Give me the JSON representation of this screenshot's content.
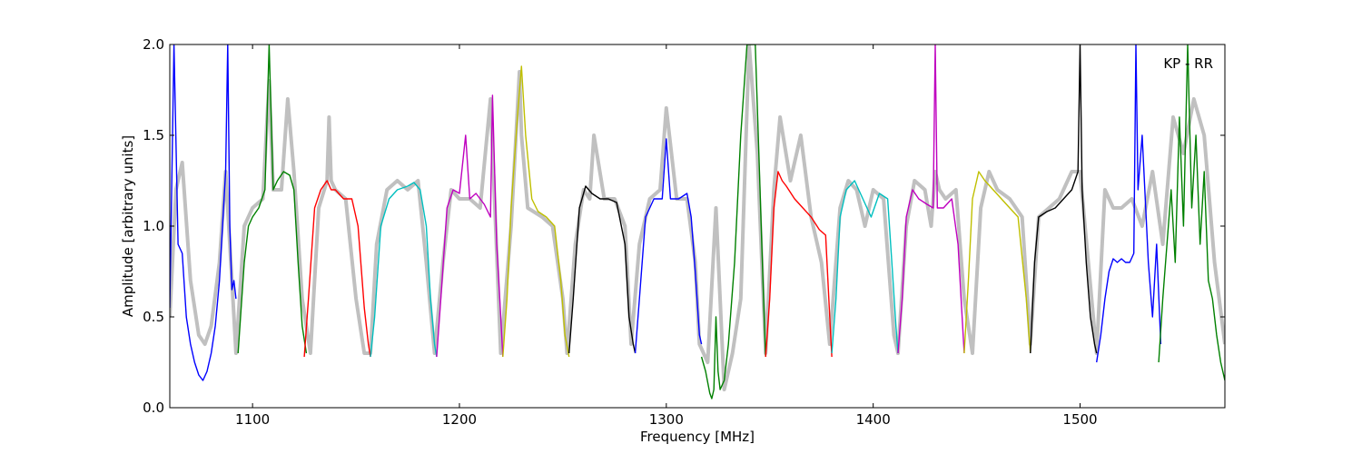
{
  "chart_data": {
    "type": "line",
    "title": "",
    "xlabel": "Frequency [MHz]",
    "ylabel": "Amplitude [arbitrary units]",
    "xlim": [
      1060,
      1570
    ],
    "ylim": [
      0,
      2.0
    ],
    "xticks": [
      1100,
      1200,
      1300,
      1400,
      1500
    ],
    "xtick_labels": [
      "1100",
      "1200",
      "1300",
      "1400",
      "1500"
    ],
    "yticks": [
      0.0,
      0.5,
      1.0,
      1.5,
      2.0
    ],
    "ytick_labels": [
      "0.0",
      "0.5",
      "1.0",
      "1.5",
      "2.0"
    ],
    "annotation": "KP - RR",
    "grid": false,
    "background_color": "#c0c0c0",
    "background_series": {
      "x": [
        1060,
        1063,
        1066,
        1070,
        1074,
        1077,
        1080,
        1084,
        1087,
        1090,
        1092,
        1096,
        1100,
        1105,
        1108,
        1110,
        1114,
        1117,
        1120,
        1124,
        1128,
        1132,
        1136,
        1137,
        1138,
        1140,
        1145,
        1150,
        1154,
        1157,
        1160,
        1165,
        1170,
        1175,
        1180,
        1184,
        1188,
        1192,
        1196,
        1200,
        1205,
        1210,
        1215,
        1220,
        1225,
        1229,
        1230,
        1233,
        1240,
        1245,
        1250,
        1252,
        1256,
        1260,
        1263,
        1265,
        1270,
        1275,
        1280,
        1283,
        1287,
        1292,
        1297,
        1300,
        1305,
        1310,
        1314,
        1316,
        1320,
        1324,
        1328,
        1332,
        1336,
        1340,
        1344,
        1348,
        1352,
        1355,
        1360,
        1365,
        1370,
        1375,
        1379,
        1384,
        1388,
        1392,
        1396,
        1400,
        1405,
        1410,
        1412,
        1416,
        1420,
        1425,
        1428,
        1430,
        1432,
        1435,
        1440,
        1444,
        1448,
        1452,
        1456,
        1460,
        1466,
        1472,
        1476,
        1480,
        1485,
        1490,
        1496,
        1500,
        1504,
        1508,
        1512,
        1516,
        1520,
        1525,
        1530,
        1535,
        1540,
        1545,
        1550,
        1555,
        1560,
        1565,
        1570
      ],
      "y": [
        0.5,
        1.2,
        1.35,
        0.7,
        0.4,
        0.35,
        0.45,
        0.8,
        1.3,
        0.7,
        0.3,
        1.0,
        1.1,
        1.15,
        1.8,
        1.2,
        1.2,
        1.7,
        1.3,
        0.6,
        0.3,
        1.1,
        1.25,
        1.6,
        1.25,
        1.2,
        1.15,
        0.6,
        0.3,
        0.3,
        0.9,
        1.2,
        1.25,
        1.2,
        1.25,
        0.8,
        0.3,
        0.8,
        1.2,
        1.15,
        1.15,
        1.1,
        1.7,
        0.3,
        1.0,
        1.85,
        1.5,
        1.1,
        1.05,
        1.0,
        0.6,
        0.3,
        0.9,
        1.2,
        1.15,
        1.5,
        1.15,
        1.15,
        1.0,
        0.35,
        0.9,
        1.15,
        1.2,
        1.65,
        1.15,
        1.15,
        0.8,
        0.35,
        0.25,
        1.1,
        0.1,
        0.3,
        0.6,
        2.0,
        1.4,
        0.3,
        1.2,
        1.6,
        1.25,
        1.5,
        1.05,
        0.8,
        0.35,
        1.1,
        1.25,
        1.2,
        1.0,
        1.2,
        1.15,
        0.4,
        0.3,
        1.0,
        1.25,
        1.2,
        1.0,
        1.3,
        1.2,
        1.15,
        1.2,
        0.6,
        0.3,
        1.1,
        1.3,
        1.2,
        1.15,
        1.05,
        0.35,
        1.05,
        1.1,
        1.15,
        1.3,
        1.3,
        0.8,
        0.3,
        1.2,
        1.1,
        1.1,
        1.15,
        1.0,
        1.3,
        0.9,
        1.6,
        1.4,
        1.7,
        1.5,
        0.8,
        0.35
      ]
    },
    "series": [
      {
        "name": "",
        "color": "#0000ff",
        "x": [
          1060,
          1062,
          1064,
          1066,
          1068,
          1070,
          1072,
          1074,
          1076,
          1078,
          1080,
          1082,
          1084,
          1086,
          1087,
          1088,
          1089,
          1090,
          1091,
          1092
        ],
        "y": [
          0.55,
          2.0,
          0.9,
          0.85,
          0.5,
          0.35,
          0.25,
          0.18,
          0.15,
          0.2,
          0.3,
          0.45,
          0.7,
          1.1,
          1.3,
          2.0,
          1.0,
          0.65,
          0.7,
          0.6
        ]
      },
      {
        "name": "",
        "color": "#008000",
        "x": [
          1093,
          1096,
          1098,
          1100,
          1103,
          1106,
          1108,
          1110,
          1112,
          1115,
          1118,
          1120,
          1122,
          1124,
          1126
        ],
        "y": [
          0.3,
          0.8,
          1.0,
          1.05,
          1.1,
          1.2,
          2.0,
          1.2,
          1.25,
          1.3,
          1.28,
          1.2,
          0.8,
          0.45,
          0.3
        ]
      },
      {
        "name": "",
        "color": "#ff0000",
        "x": [
          1125,
          1127,
          1130,
          1133,
          1136,
          1138,
          1140,
          1144,
          1148,
          1151,
          1154,
          1156,
          1157
        ],
        "y": [
          0.28,
          0.6,
          1.1,
          1.2,
          1.25,
          1.2,
          1.2,
          1.15,
          1.15,
          1.0,
          0.55,
          0.35,
          0.28
        ]
      },
      {
        "name": "",
        "color": "#00bfbf",
        "x": [
          1157,
          1159,
          1162,
          1166,
          1170,
          1175,
          1178,
          1181,
          1184,
          1186,
          1188,
          1189
        ],
        "y": [
          0.28,
          0.5,
          1.0,
          1.15,
          1.2,
          1.22,
          1.24,
          1.2,
          1.0,
          0.6,
          0.35,
          0.28
        ]
      },
      {
        "name": "",
        "color": "#bf00bf",
        "x": [
          1189,
          1191,
          1194,
          1197,
          1200,
          1203,
          1205,
          1208,
          1212,
          1215,
          1216,
          1218,
          1220,
          1221
        ],
        "y": [
          0.28,
          0.6,
          1.1,
          1.2,
          1.18,
          1.5,
          1.15,
          1.18,
          1.12,
          1.05,
          1.72,
          0.9,
          0.5,
          0.28
        ]
      },
      {
        "name": "",
        "color": "#bfbf00",
        "x": [
          1221,
          1223,
          1225,
          1228,
          1230,
          1232,
          1235,
          1238,
          1242,
          1246,
          1249,
          1251,
          1253
        ],
        "y": [
          0.28,
          0.6,
          1.1,
          1.6,
          1.88,
          1.5,
          1.15,
          1.08,
          1.05,
          1.0,
          0.7,
          0.4,
          0.28
        ]
      },
      {
        "name": "",
        "color": "#000000",
        "x": [
          1253,
          1255,
          1258,
          1261,
          1264,
          1268,
          1272,
          1276,
          1280,
          1282,
          1284,
          1285
        ],
        "y": [
          0.3,
          0.6,
          1.1,
          1.22,
          1.18,
          1.15,
          1.15,
          1.13,
          0.9,
          0.5,
          0.35,
          0.3
        ]
      },
      {
        "name": "",
        "color": "#0000ff",
        "x": [
          1285,
          1287,
          1290,
          1294,
          1298,
          1300,
          1302,
          1306,
          1310,
          1312,
          1314,
          1316,
          1317
        ],
        "y": [
          0.3,
          0.6,
          1.05,
          1.15,
          1.15,
          1.48,
          1.15,
          1.15,
          1.18,
          1.05,
          0.75,
          0.4,
          0.35
        ]
      },
      {
        "name": "",
        "color": "#008000",
        "x": [
          1317,
          1319,
          1321,
          1322,
          1323,
          1324,
          1325,
          1326,
          1328,
          1330,
          1333,
          1336,
          1339,
          1341,
          1343,
          1345,
          1347,
          1348
        ],
        "y": [
          0.28,
          0.2,
          0.08,
          0.05,
          0.1,
          0.5,
          0.2,
          0.1,
          0.15,
          0.35,
          0.8,
          1.5,
          2.0,
          2.0,
          2.0,
          1.3,
          0.6,
          0.28
        ]
      },
      {
        "name": "",
        "color": "#ff0000",
        "x": [
          1348,
          1350,
          1352,
          1354,
          1356,
          1358,
          1362,
          1366,
          1370,
          1374,
          1377,
          1379,
          1380
        ],
        "y": [
          0.28,
          0.6,
          1.1,
          1.3,
          1.25,
          1.22,
          1.15,
          1.1,
          1.05,
          0.98,
          0.95,
          0.5,
          0.28
        ]
      },
      {
        "name": "",
        "color": "#00bfbf",
        "x": [
          1380,
          1382,
          1384,
          1387,
          1391,
          1395,
          1399,
          1403,
          1407,
          1409,
          1411,
          1412
        ],
        "y": [
          0.3,
          0.6,
          1.05,
          1.2,
          1.25,
          1.15,
          1.05,
          1.18,
          1.15,
          0.8,
          0.45,
          0.3
        ]
      },
      {
        "name": "",
        "color": "#bf00bf",
        "x": [
          1412,
          1414,
          1416,
          1419,
          1422,
          1426,
          1429,
          1430,
          1431,
          1434,
          1438,
          1441,
          1443,
          1444
        ],
        "y": [
          0.3,
          0.6,
          1.05,
          1.2,
          1.15,
          1.12,
          1.1,
          2.0,
          1.1,
          1.1,
          1.15,
          0.9,
          0.5,
          0.3
        ]
      },
      {
        "name": "",
        "color": "#bfbf00",
        "x": [
          1444,
          1446,
          1448,
          1451,
          1454,
          1458,
          1462,
          1466,
          1470,
          1474,
          1476
        ],
        "y": [
          0.3,
          0.7,
          1.15,
          1.3,
          1.25,
          1.2,
          1.15,
          1.1,
          1.05,
          0.6,
          0.3
        ]
      },
      {
        "name": "",
        "color": "#000000",
        "x": [
          1476,
          1478,
          1480,
          1484,
          1488,
          1492,
          1496,
          1499,
          1500,
          1501,
          1503,
          1505,
          1507,
          1508
        ],
        "y": [
          0.3,
          0.8,
          1.05,
          1.08,
          1.1,
          1.15,
          1.2,
          1.3,
          2.0,
          1.2,
          0.8,
          0.5,
          0.35,
          0.3
        ]
      },
      {
        "name": "",
        "color": "#0000ff",
        "x": [
          1508,
          1510,
          1512,
          1514,
          1516,
          1518,
          1520,
          1522,
          1524,
          1526,
          1527,
          1528,
          1530,
          1533,
          1535,
          1537,
          1539
        ],
        "y": [
          0.25,
          0.4,
          0.6,
          0.75,
          0.82,
          0.8,
          0.82,
          0.8,
          0.8,
          0.85,
          2.0,
          1.2,
          1.5,
          0.8,
          0.5,
          0.9,
          0.35
        ]
      },
      {
        "name": "",
        "color": "#008000",
        "x": [
          1538,
          1540,
          1542,
          1544,
          1546,
          1548,
          1550,
          1552,
          1554,
          1556,
          1558,
          1560,
          1562,
          1564,
          1566,
          1568,
          1570
        ],
        "y": [
          0.25,
          0.6,
          0.9,
          1.2,
          0.8,
          1.6,
          1.0,
          2.0,
          1.1,
          1.5,
          0.9,
          1.3,
          0.7,
          0.6,
          0.4,
          0.25,
          0.15
        ]
      }
    ]
  }
}
